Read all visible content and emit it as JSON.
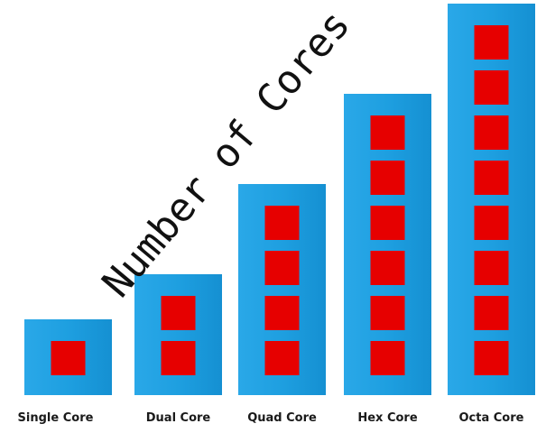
{
  "chart_data": {
    "type": "bar",
    "title": "Number of Cores",
    "categories": [
      "Single Core",
      "Dual Core",
      "Quad Core",
      "Hex Core",
      "Octa Core"
    ],
    "values": [
      1,
      2,
      4,
      6,
      8
    ],
    "ylim": [
      0,
      8
    ],
    "grid": false,
    "legend": "none",
    "colors": {
      "bar": "#1e9fe0",
      "core": "#e60000"
    }
  }
}
